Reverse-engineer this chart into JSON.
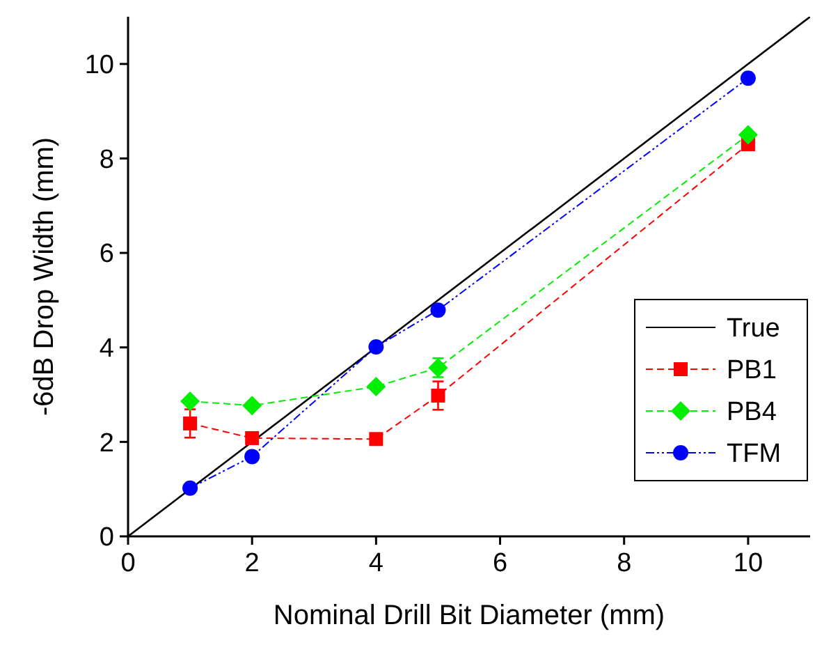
{
  "chart_data": {
    "type": "line",
    "xlabel": "Nominal Drill Bit Diameter (mm)",
    "ylabel": "-6dB Drop Width (mm)",
    "xlim": [
      0,
      11
    ],
    "ylim": [
      0,
      11
    ],
    "xticks": [
      0,
      2,
      4,
      6,
      8,
      10
    ],
    "yticks": [
      0,
      2,
      4,
      6,
      8,
      10
    ],
    "grid": false,
    "legend": "right",
    "series": [
      {
        "name": "True",
        "color": "#000000",
        "x": [
          0,
          11
        ],
        "values": [
          0,
          11
        ],
        "marker": "none",
        "line_style": "solid"
      },
      {
        "name": "PB1",
        "color": "#ff0000",
        "x": [
          1,
          2,
          4,
          5,
          10
        ],
        "values": [
          2.39,
          2.08,
          2.06,
          2.98,
          8.3
        ],
        "errors": [
          0.3,
          null,
          null,
          0.3,
          null
        ],
        "marker": "square",
        "line_style": "dashed"
      },
      {
        "name": "PB4",
        "color": "#00ee00",
        "x": [
          1,
          2,
          4,
          5,
          10
        ],
        "values": [
          2.86,
          2.77,
          3.17,
          3.57,
          8.5
        ],
        "errors": [
          null,
          null,
          null,
          0.2,
          null
        ],
        "marker": "diamond",
        "line_style": "dashed"
      },
      {
        "name": "TFM",
        "color": "#0000ff",
        "x": [
          1,
          2,
          4,
          5,
          10
        ],
        "values": [
          1.02,
          1.69,
          4.01,
          4.79,
          9.7
        ],
        "marker": "circle",
        "line_style": "dotted"
      }
    ]
  }
}
